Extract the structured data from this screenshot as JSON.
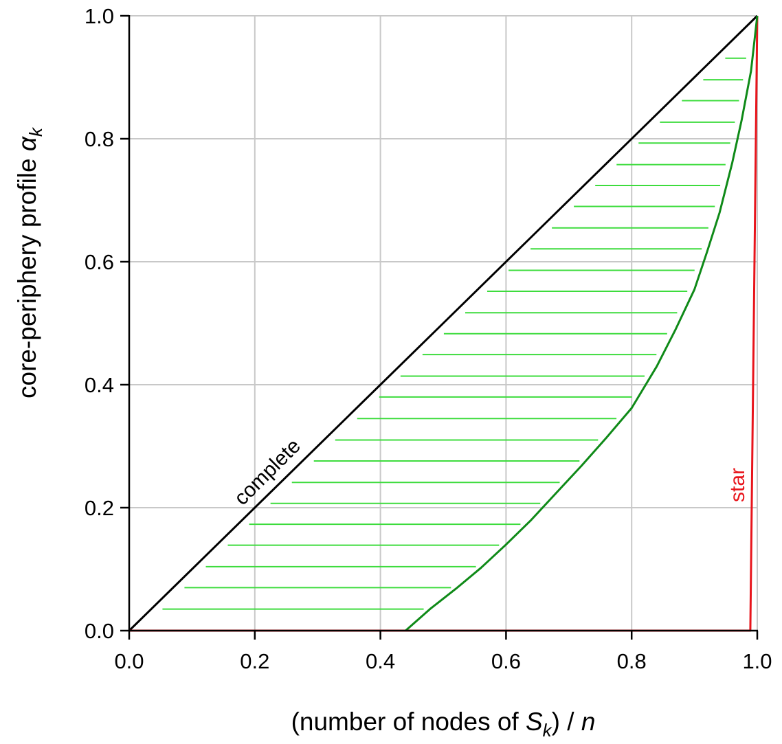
{
  "chart_data": {
    "type": "line",
    "xlabel": {
      "prefix": "(number of nodes of ",
      "var": "S",
      "sub": "k",
      "suffix": ") / ",
      "tail": "n"
    },
    "ylabel": {
      "prefix": "core-periphery profile ",
      "var": "α",
      "sub": "k"
    },
    "xlim": [
      0,
      1
    ],
    "ylim": [
      0,
      1
    ],
    "xticks": [
      "0.0",
      "0.2",
      "0.4",
      "0.6",
      "0.8",
      "1.0"
    ],
    "yticks": [
      "0.0",
      "0.2",
      "0.4",
      "0.6",
      "0.8",
      "1.0"
    ],
    "xtick_values": [
      0,
      0.2,
      0.4,
      0.6,
      0.8,
      1.0
    ],
    "ytick_values": [
      0,
      0.2,
      0.4,
      0.6,
      0.8,
      1.0
    ],
    "grid": true,
    "series": [
      {
        "name": "complete",
        "color": "#000000",
        "x": [
          0,
          1
        ],
        "y": [
          0,
          1
        ]
      },
      {
        "name": "star",
        "color": "#e8141b",
        "x": [
          0,
          0.989,
          1.0
        ],
        "y": [
          0,
          0,
          1.0
        ]
      },
      {
        "name": "",
        "color": "#0f8a18",
        "x": [
          0.44,
          0.48,
          0.52,
          0.56,
          0.6,
          0.64,
          0.68,
          0.72,
          0.76,
          0.8,
          0.84,
          0.87,
          0.9,
          0.92,
          0.94,
          0.96,
          0.975,
          0.99,
          1.0
        ],
        "y": [
          0.0,
          0.036,
          0.068,
          0.102,
          0.14,
          0.18,
          0.224,
          0.268,
          0.314,
          0.362,
          0.43,
          0.49,
          0.555,
          0.616,
          0.68,
          0.76,
          0.83,
          0.91,
          1.0
        ]
      }
    ],
    "hatch": {
      "color": "#3ddc3d",
      "y_values": [
        0.035,
        0.07,
        0.104,
        0.139,
        0.173,
        0.207,
        0.241,
        0.276,
        0.31,
        0.345,
        0.38,
        0.414,
        0.449,
        0.483,
        0.517,
        0.552,
        0.586,
        0.621,
        0.655,
        0.69,
        0.724,
        0.758,
        0.793,
        0.827,
        0.862,
        0.896,
        0.931
      ]
    },
    "annotations": [
      {
        "text": "complete",
        "color": "#000000"
      },
      {
        "text": "star",
        "color": "#e8141b"
      }
    ]
  }
}
